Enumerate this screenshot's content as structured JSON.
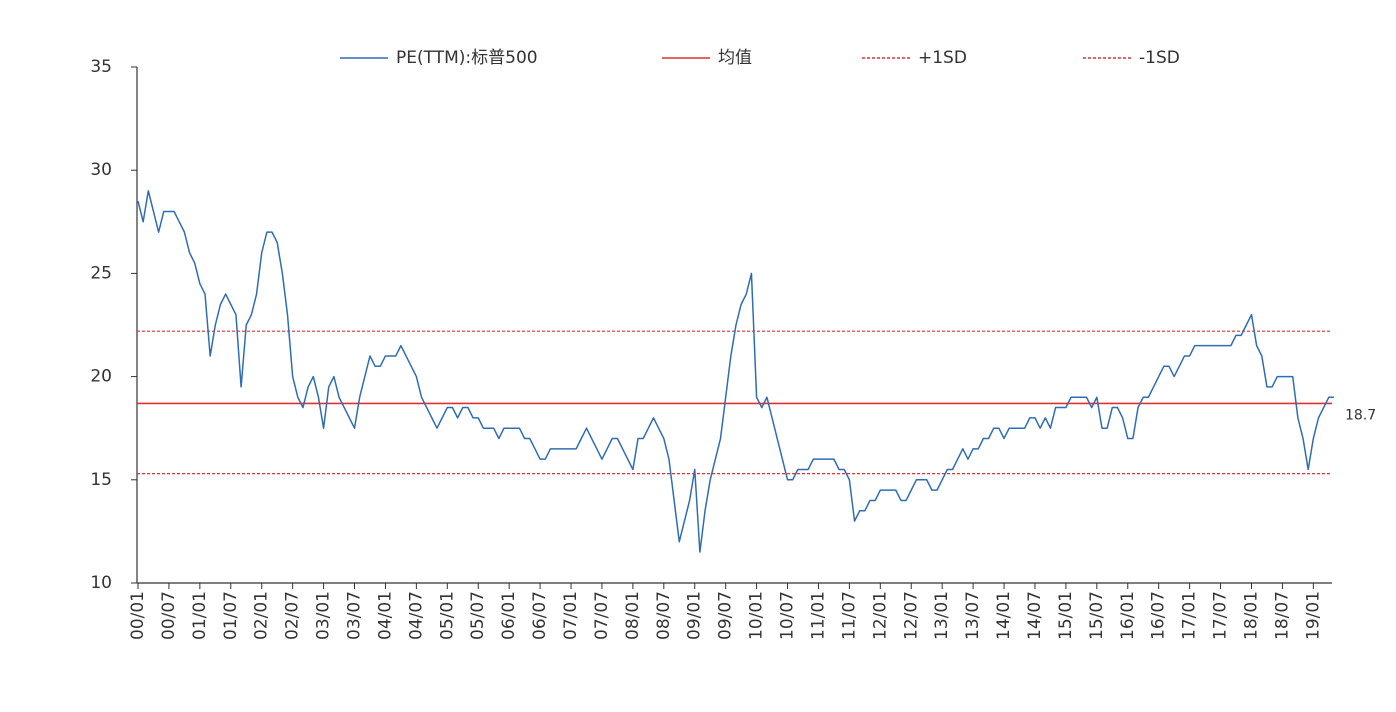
{
  "chart_data": {
    "type": "line",
    "x": [
      "00/01",
      "00/02",
      "00/03",
      "00/04",
      "00/05",
      "00/06",
      "00/07",
      "00/08",
      "00/09",
      "00/10",
      "00/11",
      "00/12",
      "01/01",
      "01/02",
      "01/03",
      "01/04",
      "01/05",
      "01/06",
      "01/07",
      "01/08",
      "01/09",
      "01/10",
      "01/11",
      "01/12",
      "02/01",
      "02/02",
      "02/03",
      "02/04",
      "02/05",
      "02/06",
      "02/07",
      "02/08",
      "02/09",
      "02/10",
      "02/11",
      "02/12",
      "03/01",
      "03/02",
      "03/03",
      "03/04",
      "03/05",
      "03/06",
      "03/07",
      "03/08",
      "03/09",
      "03/10",
      "03/11",
      "03/12",
      "04/01",
      "04/02",
      "04/03",
      "04/04",
      "04/05",
      "04/06",
      "04/07",
      "04/08",
      "04/09",
      "04/10",
      "04/11",
      "04/12",
      "05/01",
      "05/02",
      "05/03",
      "05/04",
      "05/05",
      "05/06",
      "05/07",
      "05/08",
      "05/09",
      "05/10",
      "05/11",
      "05/12",
      "06/01",
      "06/02",
      "06/03",
      "06/04",
      "06/05",
      "06/06",
      "06/07",
      "06/08",
      "06/09",
      "06/10",
      "06/11",
      "06/12",
      "07/01",
      "07/02",
      "07/03",
      "07/04",
      "07/05",
      "07/06",
      "07/07",
      "07/08",
      "07/09",
      "07/10",
      "07/11",
      "07/12",
      "08/01",
      "08/02",
      "08/03",
      "08/04",
      "08/05",
      "08/06",
      "08/07",
      "08/08",
      "08/09",
      "08/10",
      "08/11",
      "08/12",
      "09/01",
      "09/02",
      "09/03",
      "09/04",
      "09/05",
      "09/06",
      "09/07",
      "09/08",
      "09/09",
      "09/10",
      "09/11",
      "09/12",
      "10/01",
      "10/02",
      "10/03",
      "10/04",
      "10/05",
      "10/06",
      "10/07",
      "10/08",
      "10/09",
      "10/10",
      "10/11",
      "10/12",
      "11/01",
      "11/02",
      "11/03",
      "11/04",
      "11/05",
      "11/06",
      "11/07",
      "11/08",
      "11/09",
      "11/10",
      "11/11",
      "11/12",
      "12/01",
      "12/02",
      "12/03",
      "12/04",
      "12/05",
      "12/06",
      "12/07",
      "12/08",
      "12/09",
      "12/10",
      "12/11",
      "12/12",
      "13/01",
      "13/02",
      "13/03",
      "13/04",
      "13/05",
      "13/06",
      "13/07",
      "13/08",
      "13/09",
      "13/10",
      "13/11",
      "13/12",
      "14/01",
      "14/02",
      "14/03",
      "14/04",
      "14/05",
      "14/06",
      "14/07",
      "14/08",
      "14/09",
      "14/10",
      "14/11",
      "14/12",
      "15/01",
      "15/02",
      "15/03",
      "15/04",
      "15/05",
      "15/06",
      "15/07",
      "15/08",
      "15/09",
      "15/10",
      "15/11",
      "15/12",
      "16/01",
      "16/02",
      "16/03",
      "16/04",
      "16/05",
      "16/06",
      "16/07",
      "16/08",
      "16/09",
      "16/10",
      "16/11",
      "16/12",
      "17/01",
      "17/02",
      "17/03",
      "17/04",
      "17/05",
      "17/06",
      "17/07",
      "17/08",
      "17/09",
      "17/10",
      "17/11",
      "17/12",
      "18/01",
      "18/02",
      "18/03",
      "18/04",
      "18/05",
      "18/06",
      "18/07",
      "18/08",
      "18/09",
      "18/10",
      "18/11",
      "18/12",
      "19/01",
      "19/02",
      "19/03",
      "19/04",
      "19/05"
    ],
    "xticks": [
      "00/01",
      "00/07",
      "01/01",
      "01/07",
      "02/01",
      "02/07",
      "03/01",
      "03/07",
      "04/01",
      "04/07",
      "05/01",
      "05/07",
      "06/01",
      "06/07",
      "07/01",
      "07/07",
      "08/01",
      "08/07",
      "09/01",
      "09/07",
      "10/01",
      "10/07",
      "11/01",
      "11/07",
      "12/01",
      "12/07",
      "13/01",
      "13/07",
      "14/01",
      "14/07",
      "15/01",
      "15/07",
      "16/01",
      "16/07",
      "17/01",
      "17/07",
      "18/01",
      "18/07",
      "19/01"
    ],
    "ylim": [
      10,
      35
    ],
    "yticks": [
      10,
      15,
      20,
      25,
      30,
      35
    ],
    "series": [
      {
        "name": "PE(TTM):标普500",
        "color": "#2e6db4",
        "values": [
          28.5,
          27.5,
          29,
          28,
          27,
          28,
          28,
          28,
          27.5,
          27,
          26,
          25.5,
          24.5,
          24,
          21,
          22.5,
          23.5,
          24,
          23.5,
          23,
          19.5,
          22.5,
          23,
          24,
          26,
          27,
          27,
          26.5,
          25,
          23,
          20,
          19,
          18.5,
          19.5,
          20,
          19,
          17.5,
          19.5,
          20,
          19,
          18.5,
          18,
          17.5,
          19,
          20,
          21,
          20.5,
          20.5,
          21,
          21,
          21,
          21.5,
          21,
          20.5,
          20,
          19,
          18.5,
          18,
          17.5,
          18,
          18.5,
          18.5,
          18,
          18.5,
          18.5,
          18,
          18,
          17.5,
          17.5,
          17.5,
          17,
          17.5,
          17.5,
          17.5,
          17.5,
          17,
          17,
          16.5,
          16,
          16,
          16.5,
          16.5,
          16.5,
          16.5,
          16.5,
          16.5,
          17,
          17.5,
          17,
          16.5,
          16,
          16.5,
          17,
          17,
          16.5,
          16,
          15.5,
          17,
          17,
          17.5,
          18,
          17.5,
          17,
          16,
          14,
          12,
          13,
          14,
          15.5,
          11.5,
          13.5,
          15,
          16,
          17,
          19,
          21,
          22.5,
          23.5,
          24,
          25,
          19,
          18.5,
          19,
          18,
          17,
          16,
          15,
          15,
          15.5,
          15.5,
          15.5,
          16,
          16,
          16,
          16,
          16,
          15.5,
          15.5,
          15,
          13,
          13.5,
          13.5,
          14,
          14,
          14.5,
          14.5,
          14.5,
          14.5,
          14,
          14,
          14.5,
          15,
          15,
          15,
          14.5,
          14.5,
          15,
          15.5,
          15.5,
          16,
          16.5,
          16,
          16.5,
          16.5,
          17,
          17,
          17.5,
          17.5,
          17,
          17.5,
          17.5,
          17.5,
          17.5,
          18,
          18,
          17.5,
          18,
          17.5,
          18.5,
          18.5,
          18.5,
          19,
          19,
          19,
          19,
          18.5,
          19,
          17.5,
          17.5,
          18.5,
          18.5,
          18,
          17,
          17,
          18.5,
          19,
          19,
          19.5,
          20,
          20.5,
          20.5,
          20,
          20.5,
          21,
          21,
          21.5,
          21.5,
          21.5,
          21.5,
          21.5,
          21.5,
          21.5,
          21.5,
          22,
          22,
          22.5,
          23,
          21.5,
          21,
          19.5,
          19.5,
          20,
          20,
          20,
          20,
          18,
          17,
          15.5,
          17,
          18,
          18.5,
          19,
          19
        ]
      }
    ],
    "reference_lines": [
      {
        "name": "均值",
        "value": 18.7,
        "color": "#e03030",
        "dashed": false,
        "labeled": true
      },
      {
        "name": "+1SD",
        "value": 22.2,
        "color": "#e03030",
        "dashed": true,
        "labeled": false
      },
      {
        "name": "-1SD",
        "value": 15.3,
        "color": "#e03030",
        "dashed": true,
        "labeled": false
      }
    ]
  }
}
